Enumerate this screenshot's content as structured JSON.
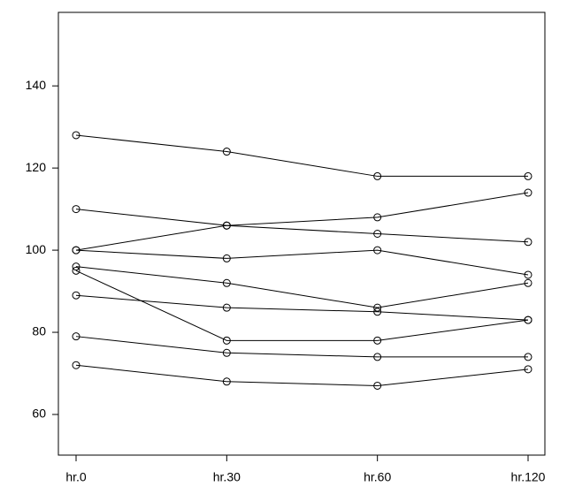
{
  "chart_data": {
    "type": "line",
    "categories": [
      "hr.0",
      "hr.30",
      "hr.60",
      "hr.120"
    ],
    "series": [
      {
        "color": "#000000",
        "values": [
          128,
          124,
          118,
          118
        ]
      },
      {
        "color": "#000000",
        "values": [
          110,
          106,
          104,
          102
        ]
      },
      {
        "color": "#000000",
        "values": [
          100,
          106,
          108,
          114
        ]
      },
      {
        "color": "#000000",
        "values": [
          100,
          98,
          100,
          94
        ]
      },
      {
        "color": "#000000",
        "values": [
          96,
          92,
          86,
          92
        ]
      },
      {
        "color": "#000000",
        "values": [
          95,
          78,
          78,
          83
        ]
      },
      {
        "color": "#000000",
        "values": [
          89,
          86,
          85,
          83
        ]
      },
      {
        "color": "#000000",
        "values": [
          79,
          75,
          74,
          74
        ]
      },
      {
        "color": "#000000",
        "values": [
          72,
          68,
          67,
          71
        ]
      }
    ],
    "ylim": [
      50.1,
      157.9
    ],
    "yticks": [
      60,
      80,
      100,
      120,
      140
    ],
    "grid": false
  }
}
